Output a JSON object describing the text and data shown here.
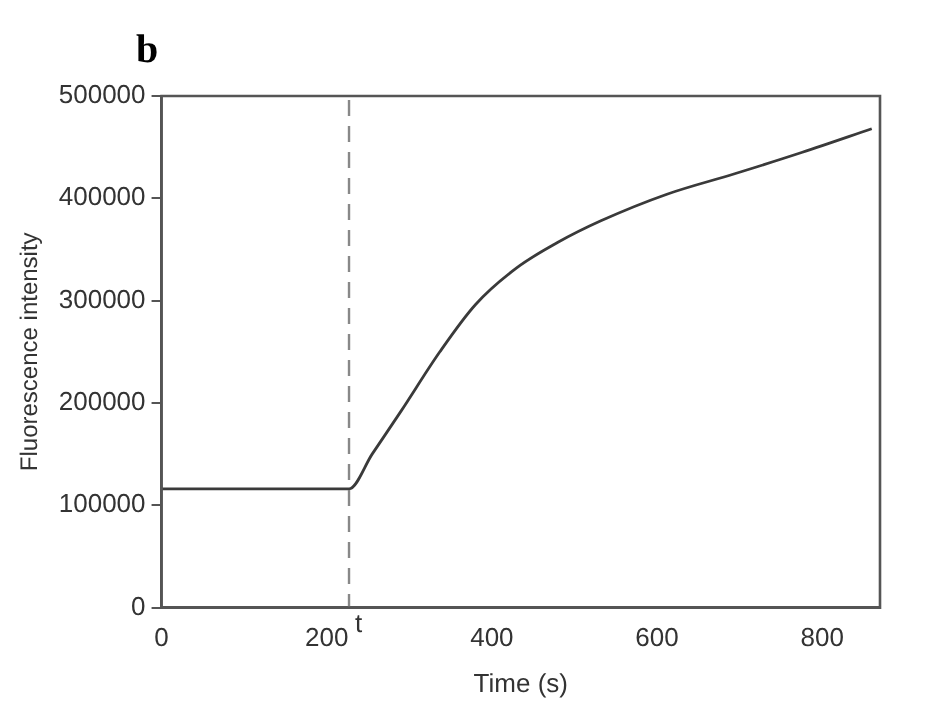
{
  "chart_data": {
    "type": "line",
    "title": "b",
    "xlabel": "Time (s)",
    "ylabel": "Fluorescence intensity",
    "x": [
      0,
      100,
      227,
      255,
      290,
      337,
      380,
      430,
      480,
      532,
      612,
      694,
      776,
      860
    ],
    "series": [
      {
        "color": "#3a3a3a",
        "values": [
          116000,
          116000,
          116000,
          150000,
          192000,
          250000,
          296000,
          332000,
          357000,
          378000,
          404000,
          424000,
          445000,
          468000
        ]
      }
    ],
    "xlim": [
      0,
      870
    ],
    "xticks": [
      0,
      200,
      400,
      600,
      800
    ],
    "ylim": [
      0,
      500000
    ],
    "yticks": [
      0,
      100000,
      200000,
      300000,
      400000,
      500000
    ],
    "ref_lines": [
      {
        "axis": "x",
        "value": 227,
        "label": "t",
        "color": "#888888",
        "line_style": "dashed"
      }
    ],
    "grid": false,
    "legend": false,
    "marker": "none",
    "line_style": "solid"
  }
}
